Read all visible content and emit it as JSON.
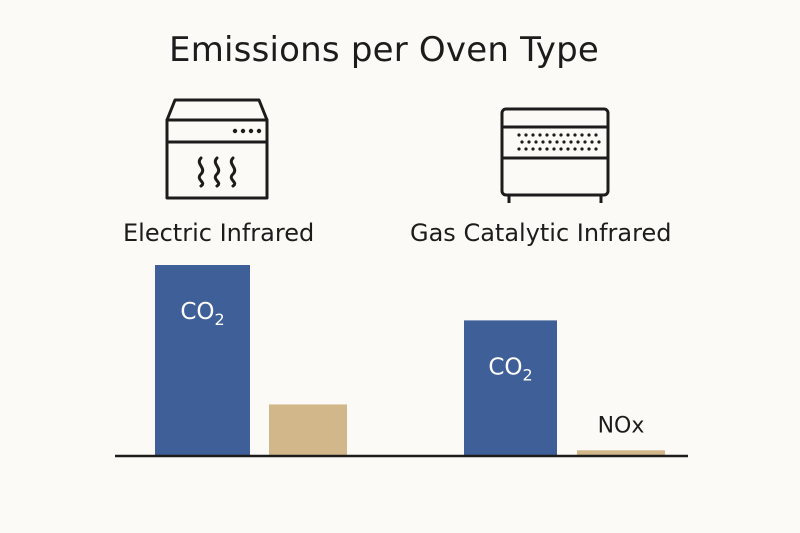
{
  "chart_data": {
    "type": "bar",
    "title": "Emissions per Oven Type",
    "categories": [
      "Electric Infrared",
      "Gas Catalytic Infrared"
    ],
    "series": [
      {
        "name": "CO2",
        "label": "CO",
        "label_sub": "2",
        "color": "#3e5f97",
        "values": [
          100,
          71
        ]
      },
      {
        "name": "NOx",
        "label": "NOx",
        "color": "#d2b78a",
        "values": [
          27,
          3
        ]
      }
    ],
    "bar_labels": [
      {
        "series": 0,
        "category": 0,
        "text": "CO",
        "sub": "2",
        "placement": "inside-top"
      },
      {
        "series": 0,
        "category": 1,
        "text": "CO",
        "sub": "2",
        "placement": "inside-top"
      },
      {
        "series": 1,
        "category": 1,
        "text": "NOx",
        "sub": "",
        "placement": "above"
      }
    ],
    "ylim": [
      0,
      100
    ],
    "xlabel": "",
    "ylabel": "",
    "grid": false,
    "icons": [
      "electric-oven-icon",
      "gas-catalytic-oven-icon"
    ]
  }
}
